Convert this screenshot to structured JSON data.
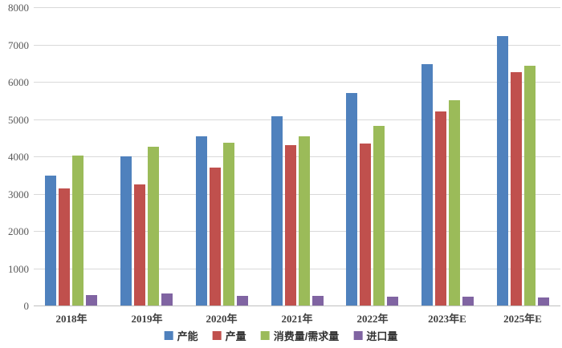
{
  "chart_data": {
    "type": "bar",
    "title": "",
    "categories": [
      "2018年",
      "2019年",
      "2020年",
      "2021年",
      "2022年",
      "2023年E",
      "2025年E"
    ],
    "series": [
      {
        "name": "产能",
        "color": "#4F81BD",
        "values": [
          3480,
          4010,
          4530,
          5070,
          5690,
          6470,
          7220
        ]
      },
      {
        "name": "产量",
        "color": "#C0504D",
        "values": [
          3140,
          3250,
          3700,
          4310,
          4350,
          5210,
          6250
        ]
      },
      {
        "name": "消费量/需求量",
        "color": "#9BBB59",
        "values": [
          4020,
          4250,
          4370,
          4540,
          4810,
          5500,
          6430
        ]
      },
      {
        "name": "进口量",
        "color": "#8064A2",
        "values": [
          280,
          330,
          265,
          255,
          240,
          245,
          220
        ]
      }
    ],
    "xlabel": "",
    "ylabel": "",
    "ylim": [
      0,
      8000
    ],
    "yticks": [
      0,
      1000,
      2000,
      3000,
      4000,
      5000,
      6000,
      7000,
      8000
    ],
    "grid": "horizontal",
    "legend_position": "bottom"
  },
  "colors": {
    "background": "#FFFFFF",
    "gridline": "#D9D9D9",
    "axis_line": "#BFBFBF",
    "ytick_text": "#595959",
    "xlabel_text": "#404040",
    "legend_text": "#333333"
  }
}
